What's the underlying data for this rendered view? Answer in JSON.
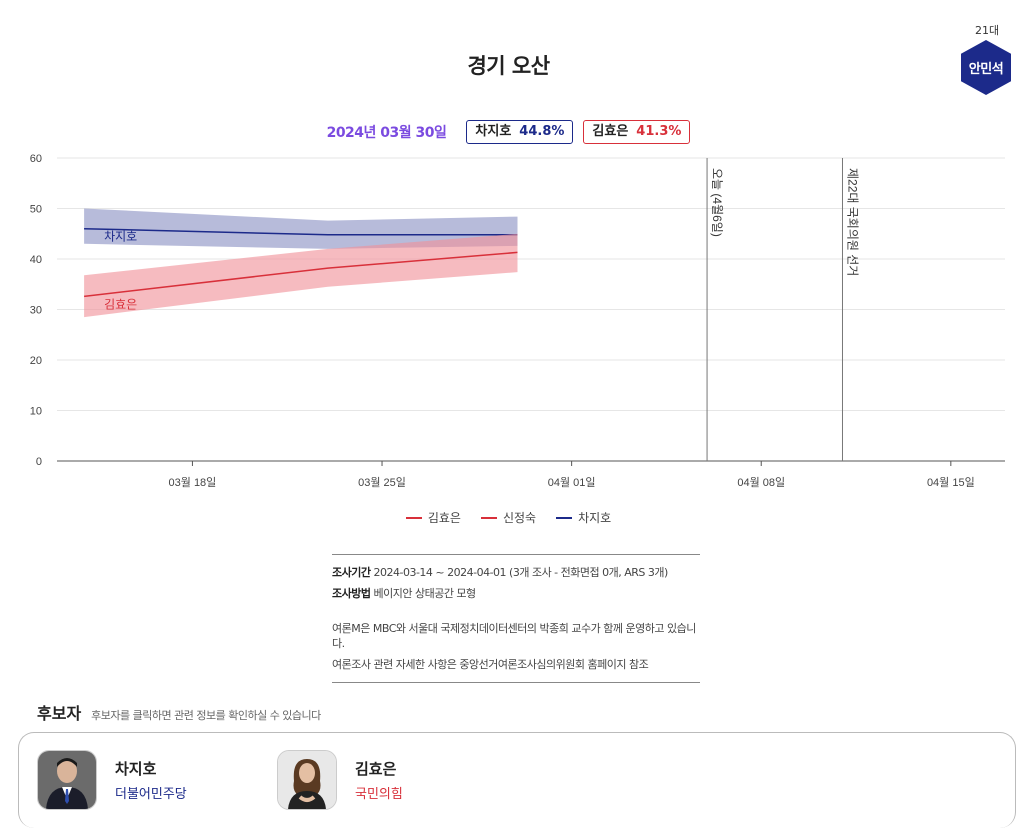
{
  "page": {
    "title": "경기 오산",
    "badge_term": "21대",
    "badge_name": "안민석"
  },
  "latest_poll": {
    "date": "2024년 03월 30일",
    "candidates": [
      {
        "name": "차지호",
        "pct": "44.8%",
        "color": "#1c2a8a"
      },
      {
        "name": "김효은",
        "pct": "41.3%",
        "color": "#d8303a"
      }
    ]
  },
  "chart_data": {
    "type": "line",
    "ylim": [
      0,
      60
    ],
    "yticks": [
      0,
      10,
      20,
      30,
      40,
      50,
      60
    ],
    "xlim": [
      "2024-03-13",
      "2024-04-17"
    ],
    "xticks": [
      {
        "date": "2024-03-18",
        "label": "03월 18일"
      },
      {
        "date": "2024-03-25",
        "label": "03월 25일"
      },
      {
        "date": "2024-04-01",
        "label": "04월 01일"
      },
      {
        "date": "2024-04-08",
        "label": "04월 08일"
      },
      {
        "date": "2024-04-15",
        "label": "04월 15일"
      }
    ],
    "series": [
      {
        "name": "차지호",
        "color": "#1c2a8a",
        "band_color": "#8b91c4",
        "points": [
          {
            "x": "2024-03-14",
            "y": 46.0
          },
          {
            "x": "2024-03-23",
            "y": 44.8
          },
          {
            "x": "2024-03-30",
            "y": 44.8
          }
        ],
        "band_upper": [
          50.0,
          47.6,
          48.4
        ],
        "band_lower": [
          43.0,
          42.0,
          42.6
        ],
        "label": "차지호"
      },
      {
        "name": "김효은",
        "color": "#d8303a",
        "band_color": "#f09199",
        "points": [
          {
            "x": "2024-03-14",
            "y": 32.6
          },
          {
            "x": "2024-03-23",
            "y": 38.2
          },
          {
            "x": "2024-03-30",
            "y": 41.3
          }
        ],
        "band_upper": [
          36.8,
          42.0,
          45.0
        ],
        "band_lower": [
          28.5,
          34.5,
          37.4
        ],
        "label": "김효은"
      }
    ],
    "annotations": [
      {
        "x": "2024-04-06",
        "text": "오늘 (4월6일)"
      },
      {
        "x": "2024-04-11",
        "text": "제22대 국회의원 선거"
      }
    ],
    "legend": [
      {
        "name": "김효은",
        "color": "#d8303a"
      },
      {
        "name": "신정숙",
        "color": "#d8303a"
      },
      {
        "name": "차지호",
        "color": "#1c2a8a"
      }
    ]
  },
  "info": {
    "period_label": "조사기간",
    "period_value": "2024-03-14 ~ 2024-04-01 (3개 조사 - 전화면접 0개, ARS 3개)",
    "method_label": "조사방법",
    "method_value": "베이지안 상태공간 모형",
    "note1": "여론M은 MBC와 서울대 국제정치데이터센터의 박종희 교수가 함께 운영하고 있습니다.",
    "note2": "여론조사 관련 자세한 사항은 중앙선거여론조사심의위원회 홈페이지 참조"
  },
  "candidates_section": {
    "heading": "후보자",
    "subtext": "후보자를 클릭하면 관련 정보를 확인하실 수 있습니다",
    "list": [
      {
        "name": "차지호",
        "party": "더불어민주당",
        "party_color": "#1c2a8a"
      },
      {
        "name": "김효은",
        "party": "국민의힘",
        "party_color": "#d8303a"
      }
    ]
  }
}
